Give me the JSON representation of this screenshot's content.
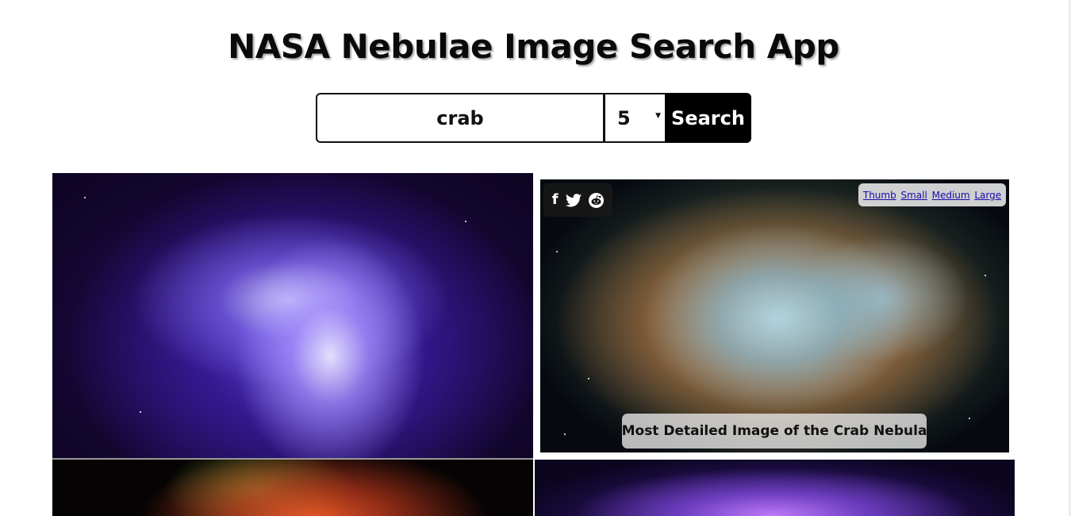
{
  "header": {
    "title": "NASA Nebulae Image Search App"
  },
  "search": {
    "query": "crab",
    "count": "5",
    "button_label": "Search"
  },
  "results": {
    "featured": {
      "caption": "Most Detailed Image of the Crab Nebula",
      "share_icons": [
        "facebook-icon",
        "twitter-icon",
        "reddit-icon"
      ],
      "share_glyphs": {
        "facebook": "f",
        "twitter": "🐦",
        "reddit": "☻"
      },
      "size_links": [
        "Thumb",
        "Small",
        "Medium",
        "Large"
      ]
    }
  },
  "colors": {
    "button_bg": "#000000",
    "link": "#1a0dab"
  }
}
